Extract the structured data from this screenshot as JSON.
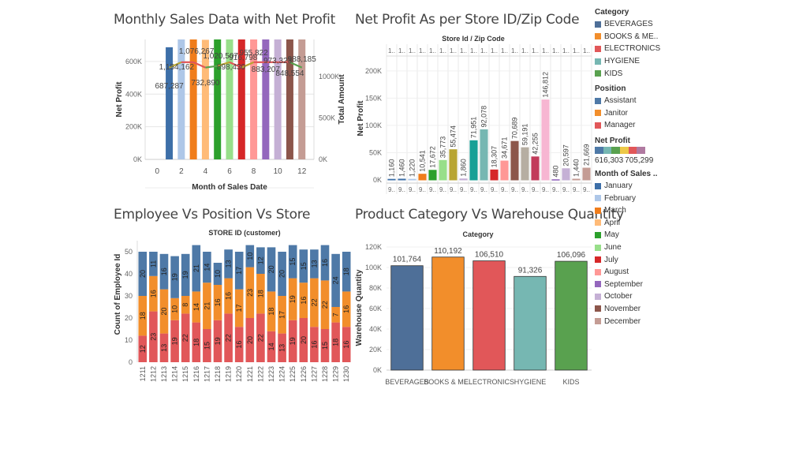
{
  "titles": {
    "monthly": "Monthly Sales Data with Net Profit",
    "store": "Net Profit As per Store ID/Zip Code",
    "employee": "Employee Vs Position Vs Store",
    "category": "Product Category Vs Warehouse Quantity"
  },
  "colors": {
    "months": [
      "#4e79a7",
      "#a0cbe8",
      "#f28e2b",
      "#ffbe7d",
      "#59a14f",
      "#8cd17d",
      "#d62728",
      "#ff9d9a",
      "#ff9896",
      "#b6a0d6",
      "#79706e",
      "#c49c94"
    ],
    "monthsExact": [
      "#3d6fa8",
      "#aec7e8",
      "#f07d1b",
      "#ffbb78",
      "#2ca02c",
      "#98df8a",
      "#d62728",
      "#ff9896",
      "#9467bd",
      "#c5b0d5",
      "#8c564b",
      "#c49c94"
    ],
    "category": {
      "BEVERAGES": "#4e6f98",
      "BOOKS & ME..": "#f28e2b",
      "ELECTRONICS": "#e15759",
      "HYGIENE": "#76b7b2",
      "KIDS": "#59a14f"
    },
    "position": {
      "Assistant": "#4e79a7",
      "Janitor": "#f28e2b",
      "Manager": "#e15759"
    }
  },
  "legend": {
    "category_title": "Category",
    "categories": [
      "BEVERAGES",
      "BOOKS & ME..",
      "ELECTRONICS",
      "HYGIENE",
      "KIDS"
    ],
    "position_title": "Position",
    "positions": [
      "Assistant",
      "Janitor",
      "Manager"
    ],
    "netprofit_title": "Net Profit",
    "netprofit_min": "616,303",
    "netprofit_max": "705,299",
    "netprofit_colors": [
      "#4e79a7",
      "#76b7b2",
      "#59a14f",
      "#edc948",
      "#e15759",
      "#b07aa1"
    ],
    "months_title": "Month of Sales ..",
    "months": [
      "January",
      "February",
      "March",
      "April",
      "May",
      "June",
      "July",
      "August",
      "September",
      "October",
      "November",
      "December"
    ]
  },
  "chart_data": [
    {
      "type": "bar",
      "title": "Monthly Sales Data with Net Profit",
      "xlabel": "Month of Sales Date",
      "ylabel": "Net Profit",
      "y2label": "Total Amount",
      "x": [
        1,
        2,
        3,
        4,
        5,
        6,
        7,
        8,
        9,
        10,
        11,
        12
      ],
      "values": [
        687287,
        1154162,
        1076267,
        732890,
        1020507,
        898430,
        916798,
        955822,
        883207,
        973323,
        848554,
        988185
      ],
      "ylim": [
        0,
        735000
      ],
      "yticks": [
        "0K",
        "200K",
        "400K",
        "600K"
      ],
      "y2ticks": [
        "0K",
        "500K",
        "1000K"
      ],
      "xticks": [
        "0",
        "2",
        "4",
        "6",
        "8",
        "10",
        "12"
      ],
      "xlim": [
        -1,
        13
      ],
      "series": [
        {
          "values": [
            1110000,
            1175000,
            1175000,
            1110000,
            1130000,
            1175000,
            1110000,
            1175000,
            1175000,
            1175000,
            1175000,
            1110000
          ]
        }
      ],
      "y2lim": [
        0,
        1450000
      ]
    },
    {
      "type": "bar",
      "title": "Net Profit As per Store ID/Zip Code",
      "xlabel": "Store Id  /  Zip Code",
      "ylabel": "Net Profit",
      "top_label": "1..",
      "bottom_label": "9..",
      "values": [
        1160,
        1460,
        1220,
        10541,
        17672,
        35773,
        55474,
        1860,
        71951,
        92078,
        18307,
        34671,
        70689,
        59191,
        42255,
        146812,
        480,
        20597,
        1440,
        21669
      ],
      "colors_index": [
        "#3d6fa8",
        "#3d6fa8",
        "#aec7e8",
        "#f07d1b",
        "#2ca02c",
        "#98df8a",
        "#b8a532",
        "#c5b0d5",
        "#17a096",
        "#76b7b2",
        "#d62728",
        "#ff9896",
        "#8c564b",
        "#b6aea2",
        "#c23b5b",
        "#f7b6d2",
        "#9467bd",
        "#c5b0d5",
        "#c49c94",
        "#c49c94"
      ],
      "labels": [
        "1,160",
        "1,460",
        "1,220",
        "10,541",
        "17,672",
        "35,773",
        "55,474",
        "1,860",
        "71,951",
        "92,078",
        "18,307",
        "34,671",
        "70,689",
        "59,191",
        "42,255",
        "146,812",
        "480",
        "20,597",
        "1,440",
        "21,669"
      ],
      "ylim": [
        0,
        220000
      ],
      "yticks": [
        "0K",
        "50K",
        "100K",
        "150K",
        "200K"
      ]
    },
    {
      "type": "bar",
      "title": "Employee Vs Position Vs Store",
      "xlabel": "STORE ID (customer)",
      "ylabel": "Count of Employee Id",
      "categories": [
        "1211",
        "1212",
        "1213",
        "1214",
        "1215",
        "1216",
        "1217",
        "1218",
        "1219",
        "1220",
        "1221",
        "1222",
        "1223",
        "1224",
        "1225",
        "1226",
        "1227",
        "1228",
        "1229",
        "1230"
      ],
      "series": [
        {
          "name": "Manager",
          "values": [
            12,
            23,
            13,
            19,
            22,
            18,
            15,
            19,
            22,
            16,
            20,
            22,
            14,
            13,
            19,
            20,
            16,
            15,
            18,
            16
          ]
        },
        {
          "name": "Janitor",
          "values": [
            18,
            16,
            20,
            10,
            8,
            14,
            21,
            16,
            16,
            17,
            23,
            18,
            18,
            17,
            19,
            16,
            22,
            22,
            7,
            16
          ]
        },
        {
          "name": "Assistant",
          "values": [
            20,
            11,
            16,
            19,
            19,
            21,
            14,
            10,
            13,
            17,
            10,
            12,
            20,
            20,
            15,
            15,
            13,
            16,
            24,
            18
          ]
        }
      ],
      "ylim": [
        0,
        55
      ],
      "yticks": [
        "0",
        "10",
        "20",
        "30",
        "40",
        "50"
      ]
    },
    {
      "type": "bar",
      "title": "Product Category Vs Warehouse Quantity",
      "xlabel": "Category",
      "ylabel": "Warehouse Quantity",
      "categories": [
        "BEVERAGES",
        "BOOKS & ME..",
        "ELECTRONICS",
        "HYGIENE",
        "KIDS"
      ],
      "values": [
        101764,
        110192,
        106510,
        91326,
        106096
      ],
      "labels": [
        "101,764",
        "110,192",
        "106,510",
        "91,326",
        "106,096"
      ],
      "ylim": [
        0,
        120000
      ],
      "yticks": [
        "0K",
        "20K",
        "40K",
        "60K",
        "80K",
        "100K",
        "120K"
      ]
    }
  ]
}
